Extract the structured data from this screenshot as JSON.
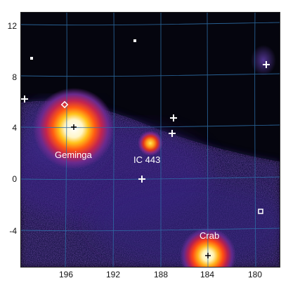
{
  "axes": {
    "y_ticks": [
      "12",
      "8",
      "4",
      "0",
      "-4"
    ],
    "x_ticks": [
      "196",
      "192",
      "188",
      "184",
      "180"
    ]
  },
  "sources": {
    "geminga": "Geminga",
    "ic443": "IC 443",
    "crab": "Crab"
  },
  "colors": {
    "background": "#05050e",
    "grid": "#2e6fa8",
    "diffuse_low": "#2a1e6a",
    "diffuse_mid": "#7a2a8a",
    "hot": "#ff6a1a",
    "core": "#ffffff"
  }
}
